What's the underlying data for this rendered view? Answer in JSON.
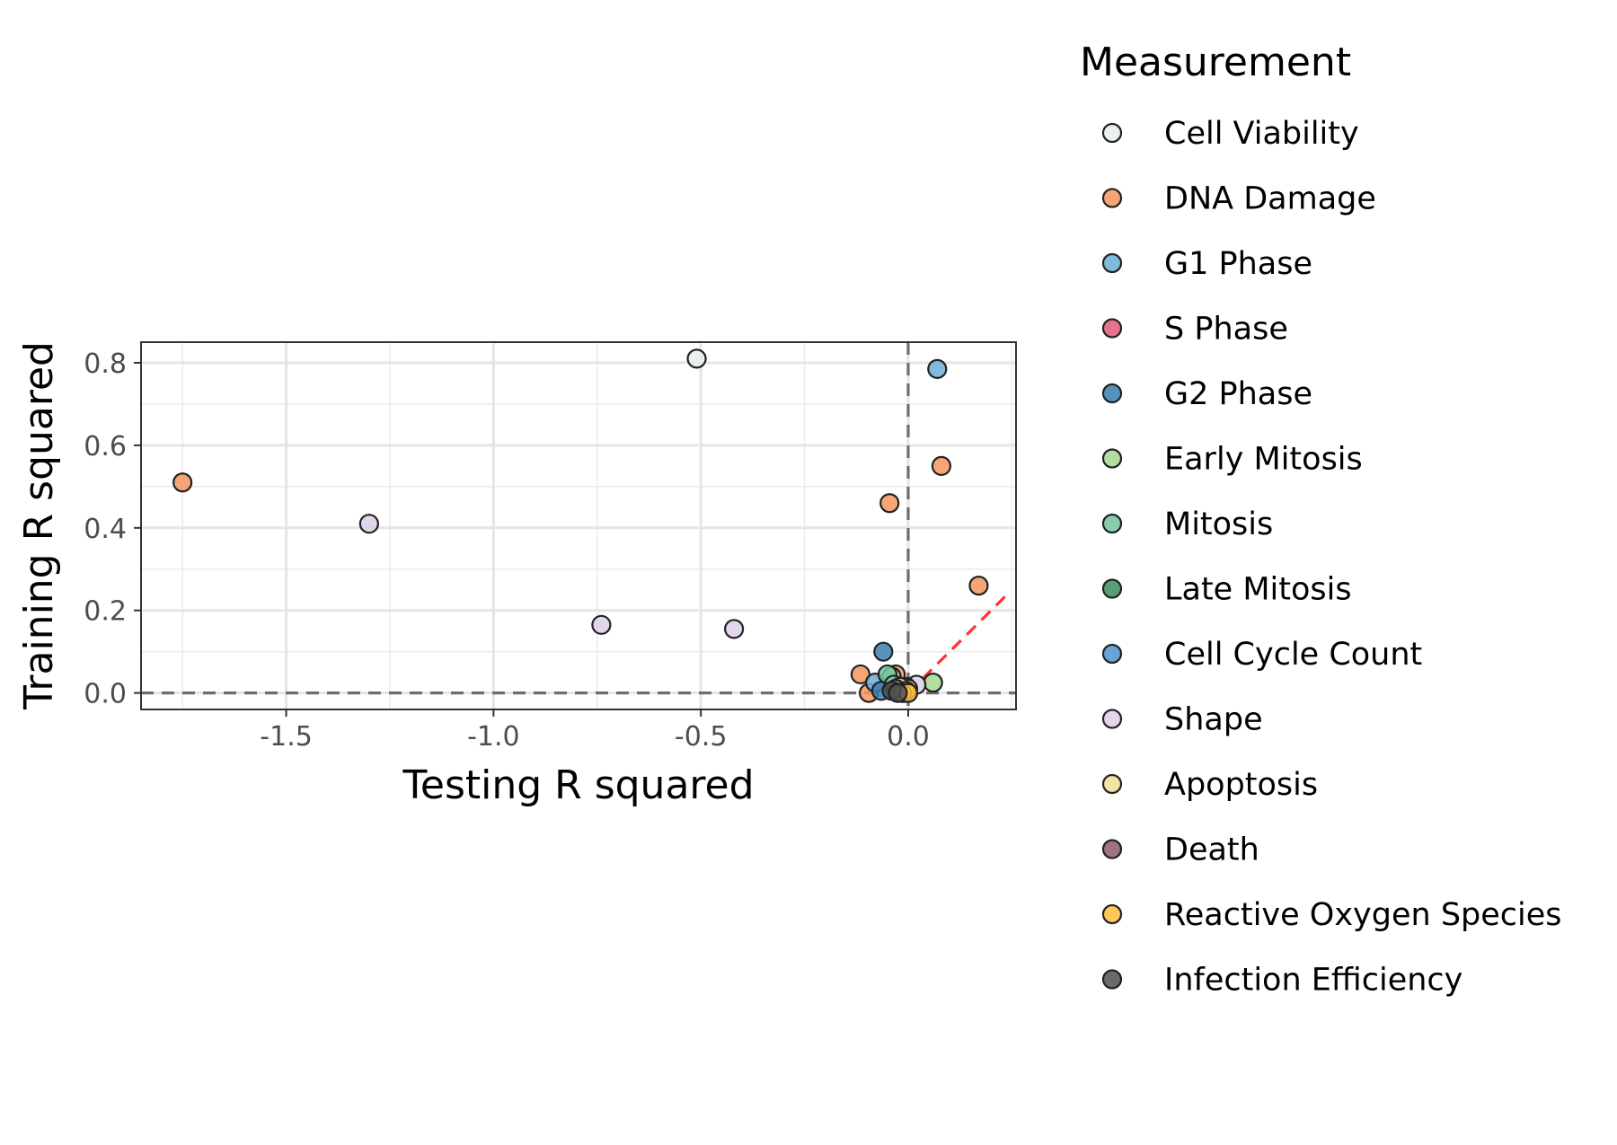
{
  "chart_data": {
    "type": "scatter",
    "xlabel": "Testing R squared",
    "ylabel": "Training R squared",
    "xlim": [
      -1.85,
      0.26
    ],
    "ylim": [
      -0.04,
      0.85
    ],
    "x_ticks": [
      -1.5,
      -1.0,
      -0.5,
      0.0
    ],
    "x_tick_labels": [
      "-1.5",
      "-1.0",
      "-0.5",
      "0.0"
    ],
    "y_ticks": [
      0.0,
      0.2,
      0.4,
      0.6,
      0.8
    ],
    "y_tick_labels": [
      "0.0",
      "0.2",
      "0.4",
      "0.6",
      "0.8"
    ],
    "grid": true,
    "reference_lines": {
      "vertical_dashed_at_x": 0.0,
      "horizontal_dashed_at_y": 0.0,
      "identity_line": {
        "from": [
          0.0,
          0.0
        ],
        "to": [
          0.24,
          0.24
        ],
        "color": "#ff3333"
      }
    },
    "legend": {
      "title": "Measurement",
      "placement": "right"
    },
    "series": [
      {
        "name": "Cell Viability",
        "color": "#e5f0ea",
        "points": [
          [
            -0.51,
            0.81
          ],
          [
            -0.01,
            0.01
          ]
        ]
      },
      {
        "name": "DNA Damage",
        "color": "#f4955f",
        "points": [
          [
            -1.75,
            0.51
          ],
          [
            -0.045,
            0.46
          ],
          [
            0.08,
            0.55
          ],
          [
            0.17,
            0.26
          ],
          [
            -0.115,
            0.045
          ],
          [
            -0.095,
            0.0
          ],
          [
            -0.03,
            0.045
          ],
          [
            -0.02,
            0.005
          ]
        ]
      },
      {
        "name": "G1 Phase",
        "color": "#6baed6",
        "points": [
          [
            0.07,
            0.785
          ],
          [
            -0.08,
            0.025
          ],
          [
            -0.04,
            0.01
          ]
        ]
      },
      {
        "name": "S Phase",
        "color": "#e15a7a",
        "points": [
          [
            -0.015,
            0.01
          ]
        ]
      },
      {
        "name": "G2 Phase",
        "color": "#3a7fb3",
        "points": [
          [
            -0.06,
            0.1
          ],
          [
            -0.065,
            0.005
          ],
          [
            -0.03,
            0.02
          ]
        ]
      },
      {
        "name": "Early Mitosis",
        "color": "#a6d88f",
        "points": [
          [
            0.06,
            0.025
          ],
          [
            -0.04,
            0.04
          ]
        ]
      },
      {
        "name": "Mitosis",
        "color": "#74c69d",
        "points": [
          [
            -0.05,
            0.045
          ],
          [
            -0.035,
            0.02
          ]
        ]
      },
      {
        "name": "Late Mitosis",
        "color": "#3d8c5f",
        "points": [
          [
            -0.025,
            0.005
          ]
        ]
      },
      {
        "name": "Cell Cycle Count",
        "color": "#4e95d0",
        "points": [
          [
            -0.01,
            0.0
          ]
        ]
      },
      {
        "name": "Shape",
        "color": "#dccfe8",
        "points": [
          [
            -1.3,
            0.41
          ],
          [
            -0.74,
            0.165
          ],
          [
            -0.42,
            0.155
          ],
          [
            0.02,
            0.02
          ],
          [
            -0.005,
            0.015
          ]
        ]
      },
      {
        "name": "Apoptosis",
        "color": "#f0dd94",
        "points": [
          [
            0.0,
            0.01
          ],
          [
            -0.02,
            0.015
          ]
        ]
      },
      {
        "name": "Death",
        "color": "#8c5a70",
        "points": [
          [
            -0.03,
            0.01
          ]
        ]
      },
      {
        "name": "Reactive Oxygen Species",
        "color": "#ffbe3c",
        "points": [
          [
            -0.005,
            0.005
          ],
          [
            -0.015,
            0.0
          ],
          [
            0.0,
            0.0
          ]
        ]
      },
      {
        "name": "Infection Efficiency",
        "color": "#505050",
        "points": [
          [
            -0.04,
            0.005
          ],
          [
            -0.025,
            0.0
          ]
        ]
      }
    ]
  }
}
